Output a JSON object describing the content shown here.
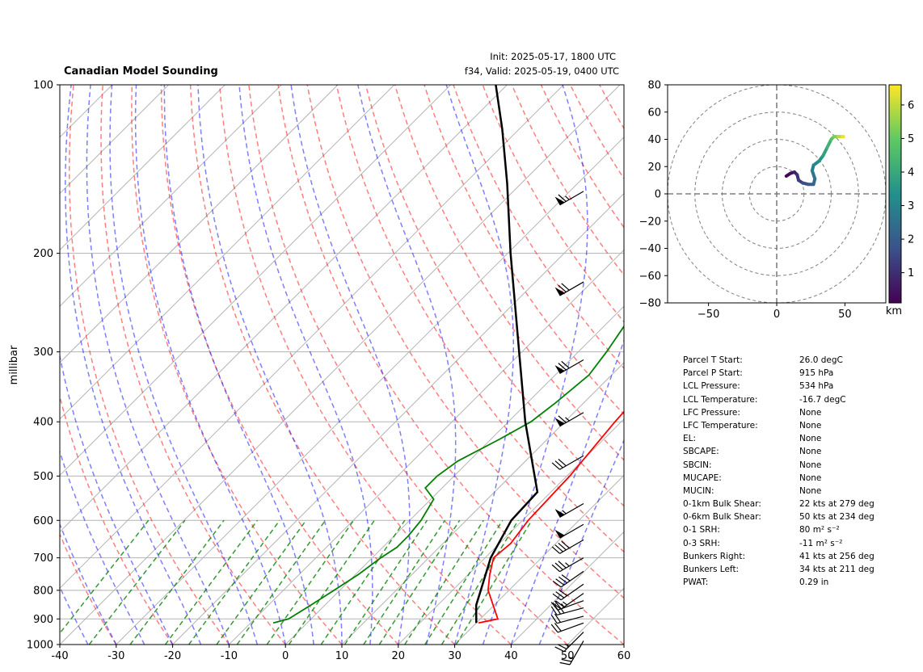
{
  "header": {
    "title": "Canadian Model Sounding",
    "init": "Init: 2025-05-17, 1800 UTC",
    "valid": "f34, Valid: 2025-05-19, 0400 UTC"
  },
  "hodograph_colorbar": {
    "label": "km",
    "ticks": [
      "1",
      "2",
      "3",
      "4",
      "5",
      "6"
    ],
    "range": [
      0.1,
      6.6
    ]
  },
  "stats": [
    {
      "label": "Parcel T Start:",
      "value": "26.0 degC"
    },
    {
      "label": "Parcel P Start:",
      "value": "915 hPa"
    },
    {
      "label": "LCL Pressure:",
      "value": "534 hPa"
    },
    {
      "label": "LCL Temperature:",
      "value": "-16.7 degC"
    },
    {
      "label": "LFC Pressure:",
      "value": "None"
    },
    {
      "label": "LFC Temperature:",
      "value": "None"
    },
    {
      "label": "EL:",
      "value": "None"
    },
    {
      "label": "SBCAPE:",
      "value": "None"
    },
    {
      "label": "SBCIN:",
      "value": "None"
    },
    {
      "label": "MUCAPE:",
      "value": "None"
    },
    {
      "label": "MUCIN:",
      "value": "None"
    },
    {
      "label": "0-1km Bulk Shear:",
      "value": "22 kts at 279 deg"
    },
    {
      "label": "0-6km Bulk Shear:",
      "value": "50 kts at 234 deg"
    },
    {
      "label": "0-1 SRH:",
      "value": "80 m² s⁻²"
    },
    {
      "label": "0-3 SRH:",
      "value": "-11 m² s⁻²"
    },
    {
      "label": "Bunkers Right:",
      "value": "41 kts at 256 deg"
    },
    {
      "label": "Bunkers Left:",
      "value": "34 kts at 211 deg"
    },
    {
      "label": "PWAT:",
      "value": "0.29 in"
    }
  ],
  "chart_data": [
    {
      "type": "line",
      "title": "Canadian Model Sounding",
      "xlabel": "",
      "ylabel": "millibar",
      "xlim": [
        -40,
        60
      ],
      "ylim": [
        1000,
        100
      ],
      "y_scale": "log",
      "x_ticks": [
        "-40",
        "-30",
        "-20",
        "-10",
        "0",
        "10",
        "20",
        "30",
        "40",
        "50",
        "60"
      ],
      "y_ticks": [
        {
          "p": 100,
          "label": "100"
        },
        {
          "p": 200,
          "label": "200"
        },
        {
          "p": 300,
          "label": "300"
        },
        {
          "p": 400,
          "label": "400"
        },
        {
          "p": 500,
          "label": "500"
        },
        {
          "p": 600,
          "label": "600"
        },
        {
          "p": 700,
          "label": "700"
        },
        {
          "p": 800,
          "label": "800"
        },
        {
          "p": 900,
          "label": "900"
        },
        {
          "p": 1000,
          "label": "1000"
        }
      ],
      "series": [
        {
          "role": "temperature",
          "color": "#ff0000",
          "points": [
            [
              915,
              30.4
            ],
            [
              900,
              33.1
            ],
            [
              850,
              29.8
            ],
            [
              800,
              26.3
            ],
            [
              750,
              23.8
            ],
            [
              700,
              21.5
            ],
            [
              660,
              22.0
            ],
            [
              600,
              21.0
            ],
            [
              500,
              20.5
            ],
            [
              400,
              18.9
            ],
            [
              300,
              17.5
            ],
            [
              250,
              17.0
            ],
            [
              220,
              16.5
            ],
            [
              180,
              21.0
            ],
            [
              150,
              30.0
            ],
            [
              120,
              40.0
            ],
            [
              100,
              40.0
            ]
          ]
        },
        {
          "role": "dewpoint",
          "color": "#008000",
          "points": [
            [
              915,
              -6.0
            ],
            [
              900,
              -4.0
            ],
            [
              850,
              -2.5
            ],
            [
              800,
              -1.0
            ],
            [
              750,
              0.5
            ],
            [
              700,
              1.5
            ],
            [
              670,
              2.5
            ],
            [
              640,
              2.5
            ],
            [
              600,
              2.0
            ],
            [
              550,
              0.5
            ],
            [
              525,
              -3.0
            ],
            [
              500,
              -3.0
            ],
            [
              470,
              -2.0
            ],
            [
              430,
              1.5
            ],
            [
              400,
              4.0
            ],
            [
              370,
              5.0
            ],
            [
              330,
              6.0
            ],
            [
              300,
              5.0
            ],
            [
              250,
              2.5
            ],
            [
              220,
              -0.5
            ],
            [
              190,
              -5.0
            ],
            [
              160,
              -13.0
            ],
            [
              140,
              -12.0
            ],
            [
              120,
              5.0
            ],
            [
              100,
              14.5
            ]
          ]
        },
        {
          "role": "parcel",
          "color": "#000000",
          "points": [
            [
              915,
              30.0
            ],
            [
              850,
              26.8
            ],
            [
              800,
              25.0
            ],
            [
              700,
              21.0
            ],
            [
              600,
              18.0
            ],
            [
              534,
              17.6
            ],
            [
              400,
              3.0
            ],
            [
              300,
              -10.5
            ],
            [
              200,
              -29.5
            ],
            [
              150,
              -42.5
            ],
            [
              120,
              -53.0
            ],
            [
              100,
              -62.0
            ]
          ]
        }
      ],
      "wind_barbs": [
        {
          "p": 985,
          "speed": 25,
          "direction": 210
        },
        {
          "p": 950,
          "speed": 25,
          "direction": 225
        },
        {
          "p": 915,
          "speed": 20,
          "direction": 250
        },
        {
          "p": 890,
          "speed": 20,
          "direction": 255
        },
        {
          "p": 860,
          "speed": 25,
          "direction": 255
        },
        {
          "p": 835,
          "speed": 25,
          "direction": 250
        },
        {
          "p": 810,
          "speed": 25,
          "direction": 235
        },
        {
          "p": 780,
          "speed": 30,
          "direction": 235
        },
        {
          "p": 740,
          "speed": 40,
          "direction": 235
        },
        {
          "p": 700,
          "speed": 35,
          "direction": 240
        },
        {
          "p": 650,
          "speed": 40,
          "direction": 240
        },
        {
          "p": 610,
          "speed": 50,
          "direction": 240
        },
        {
          "p": 560,
          "speed": 55,
          "direction": 240
        },
        {
          "p": 460,
          "speed": 30,
          "direction": 240
        },
        {
          "p": 385,
          "speed": 65,
          "direction": 240
        },
        {
          "p": 310,
          "speed": 70,
          "direction": 240
        },
        {
          "p": 225,
          "speed": 70,
          "direction": 240
        },
        {
          "p": 155,
          "speed": 65,
          "direction": 240
        }
      ]
    },
    {
      "type": "line",
      "title": "",
      "xlabel": "",
      "ylabel": "",
      "xlim": [
        -80,
        80
      ],
      "ylim": [
        -80,
        80
      ],
      "x_ticks": [
        "−50",
        "0",
        "50"
      ],
      "y_ticks": [
        "80",
        "60",
        "40",
        "20",
        "0",
        "−20",
        "−40",
        "−60",
        "−80"
      ],
      "rings": [
        20,
        40,
        60,
        80
      ],
      "colormap": "viridis",
      "series": [
        {
          "role": "hodograph",
          "points": [
            [
              7,
              13,
              0.1
            ],
            [
              10,
              15,
              0.3
            ],
            [
              13,
              16,
              0.6
            ],
            [
              15,
              14,
              0.9
            ],
            [
              16,
              10,
              1.2
            ],
            [
              19,
              8,
              1.5
            ],
            [
              23,
              7,
              1.8
            ],
            [
              27,
              7,
              2.1
            ],
            [
              28,
              11,
              2.4
            ],
            [
              26,
              17,
              2.7
            ],
            [
              27,
              21,
              3.0
            ],
            [
              31,
              24,
              3.3
            ],
            [
              34,
              28,
              3.6
            ],
            [
              37,
              34,
              4.0
            ],
            [
              40,
              40,
              4.5
            ],
            [
              42,
              42,
              5.0
            ],
            [
              45,
              42,
              5.6
            ],
            [
              48,
              42,
              6.2
            ],
            [
              49,
              42,
              6.6
            ]
          ]
        }
      ]
    }
  ]
}
